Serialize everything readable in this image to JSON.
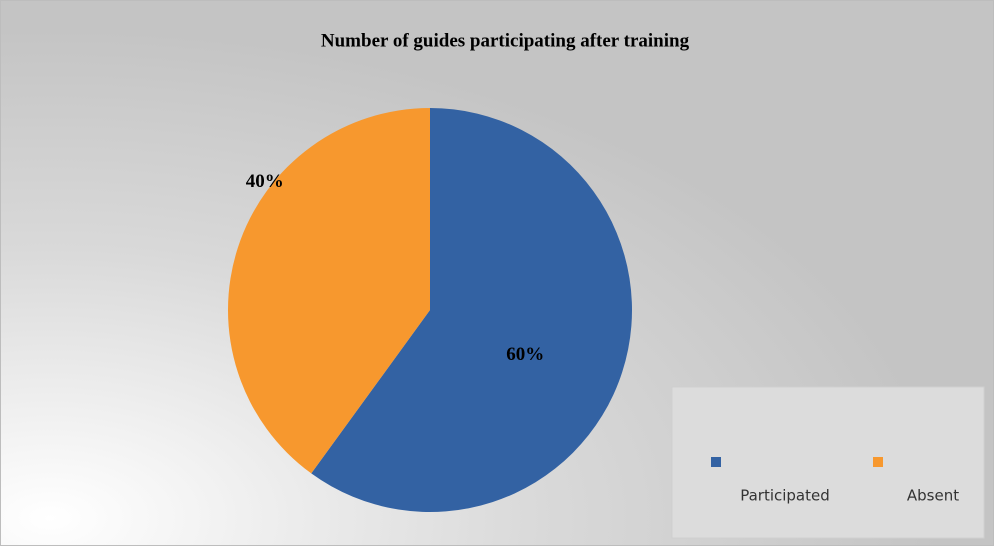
{
  "chart_data": {
    "type": "pie",
    "title": "Number of guides participating after training",
    "categories": [
      "Participated",
      "Absent"
    ],
    "values": [
      60,
      40
    ],
    "value_labels": [
      "60%",
      "40%"
    ],
    "colors": [
      "#3362a3",
      "#f7982e"
    ],
    "legend": "bottom-right"
  }
}
